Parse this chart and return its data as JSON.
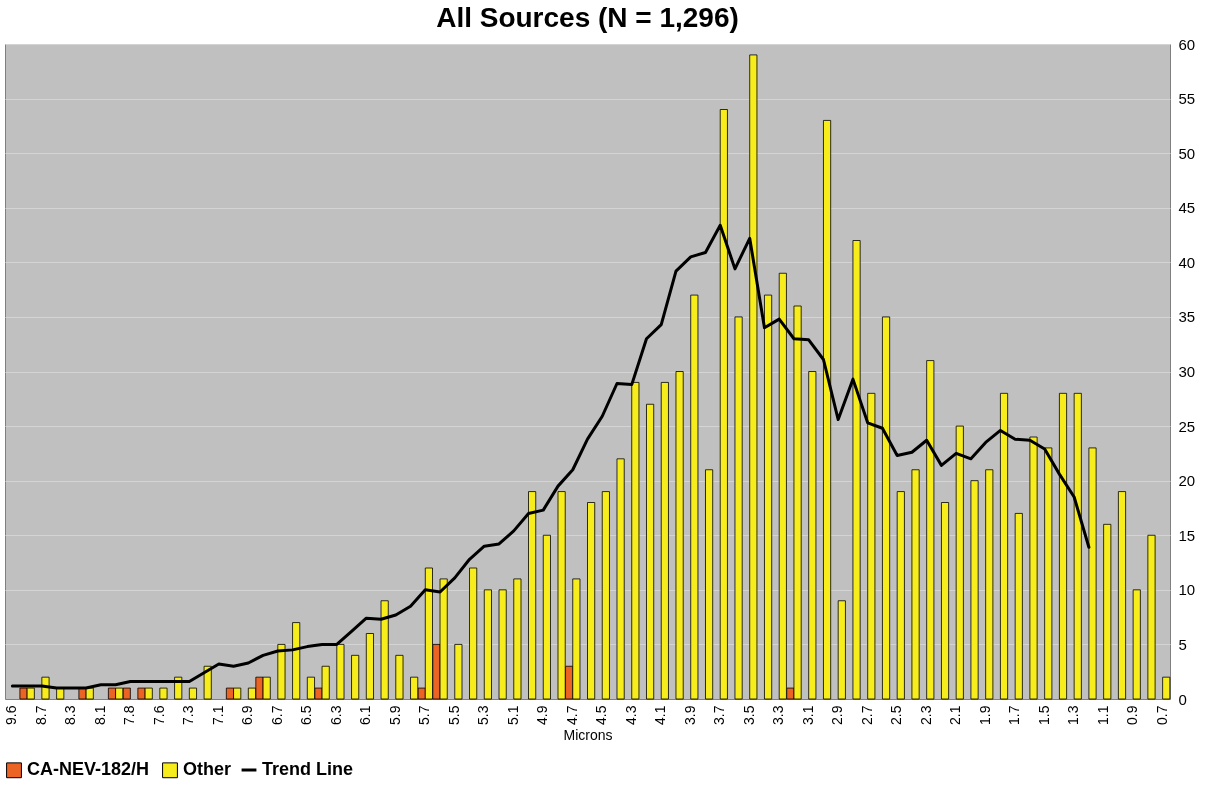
{
  "chart_data": {
    "type": "bar",
    "title": "All Sources (N = 1,296)",
    "xlabel": "Microns",
    "categories": [
      "9.6",
      null,
      "8.7",
      null,
      "8.3",
      null,
      "8.1",
      null,
      "7.8",
      null,
      "7.6",
      null,
      "7.3",
      null,
      "7.1",
      null,
      "6.9",
      null,
      "6.7",
      null,
      "6.5",
      null,
      "6.3",
      null,
      "6.1",
      null,
      "5.9",
      null,
      "5.7",
      null,
      "5.5",
      null,
      "5.3",
      null,
      "5.1",
      null,
      "4.9",
      null,
      "4.7",
      null,
      "4.5",
      null,
      "4.3",
      null,
      "4.1",
      null,
      "3.9",
      null,
      "3.7",
      null,
      "3.5",
      null,
      "3.3",
      null,
      "3.1",
      null,
      "2.9",
      null,
      "2.7",
      null,
      "2.5",
      null,
      "2.3",
      null,
      "2.1",
      null,
      "1.9",
      null,
      "1.7",
      null,
      "1.5",
      null,
      "1.3",
      null,
      "1.1",
      null,
      "0.9",
      null,
      "0.7"
    ],
    "series": [
      {
        "name": "CA-NEV-182/H",
        "color": "#ec6424",
        "values": [
          null,
          1,
          null,
          null,
          null,
          1,
          null,
          1,
          1,
          1,
          null,
          null,
          null,
          null,
          null,
          1,
          null,
          2,
          null,
          null,
          null,
          1,
          null,
          null,
          null,
          null,
          null,
          null,
          1,
          5,
          null,
          null,
          null,
          null,
          null,
          null,
          null,
          null,
          3,
          null,
          null,
          null,
          null,
          null,
          null,
          null,
          null,
          null,
          null,
          null,
          null,
          null,
          null,
          1,
          null,
          null,
          null,
          null,
          null,
          null,
          null,
          null,
          null,
          null,
          null,
          null,
          null,
          null,
          null,
          null,
          null,
          null,
          null,
          null,
          null,
          null,
          null,
          null,
          null
        ]
      },
      {
        "name": "Other",
        "color": "#f7ec1c",
        "values": [
          null,
          1,
          2,
          1,
          null,
          1,
          null,
          1,
          null,
          1,
          1,
          2,
          1,
          3,
          null,
          1,
          1,
          2,
          5,
          7,
          2,
          3,
          5,
          4,
          6,
          9,
          4,
          2,
          12,
          11,
          5,
          12,
          10,
          10,
          11,
          19,
          15,
          19,
          11,
          18,
          19,
          22,
          29,
          27,
          29,
          30,
          37,
          21,
          54,
          35,
          59,
          37,
          39,
          36,
          30,
          53,
          9,
          42,
          28,
          35,
          19,
          21,
          31,
          18,
          25,
          20,
          21,
          28,
          17,
          24,
          23,
          28,
          28,
          23,
          16,
          19,
          10,
          15,
          2
        ]
      },
      {
        "name": "Trend Line",
        "type": "line",
        "color": "#000000",
        "values": [
          1.2,
          1.2,
          1.2,
          1.0,
          1.0,
          1.0,
          1.3,
          1.3,
          1.6,
          1.6,
          1.6,
          1.6,
          1.6,
          2.4,
          3.2,
          3.0,
          3.3,
          4.0,
          4.4,
          4.5,
          4.8,
          5.0,
          5.0,
          6.2,
          7.4,
          7.3,
          7.7,
          8.5,
          10.0,
          9.8,
          11.1,
          12.8,
          14.0,
          14.2,
          15.4,
          17.0,
          17.3,
          19.5,
          21.0,
          23.8,
          25.9,
          28.9,
          28.8,
          33.0,
          34.3,
          39.2,
          40.5,
          40.9,
          43.4,
          39.4,
          42.2,
          34.0,
          34.8,
          33.0,
          32.9,
          31.1,
          25.6,
          29.3,
          25.3,
          24.8,
          22.3,
          22.6,
          23.7,
          21.4,
          22.5,
          22.0,
          23.5,
          24.6,
          23.8,
          23.7,
          22.9,
          20.6,
          18.5,
          13.9,
          null,
          null,
          null,
          null,
          null
        ]
      }
    ],
    "ylim": [
      0,
      60
    ],
    "yticks": [
      0,
      5,
      10,
      15,
      20,
      25,
      30,
      35,
      40,
      45,
      50,
      55,
      60
    ],
    "grid": "y",
    "legend": "bottom"
  }
}
